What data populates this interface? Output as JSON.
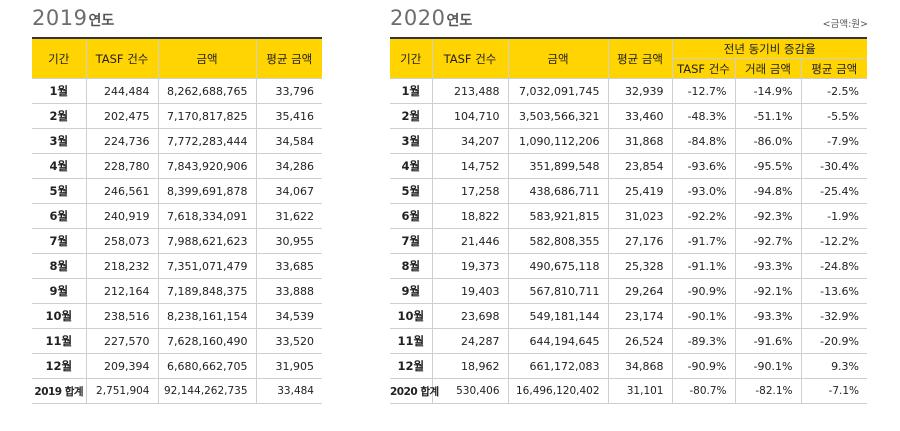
{
  "t2019": {
    "year": "2019",
    "suffix": "연도",
    "headers": [
      "기간",
      "TASF 건수",
      "금액",
      "평균 금액"
    ],
    "rows": [
      [
        "1월",
        "244,484",
        "8,262,688,765",
        "33,796"
      ],
      [
        "2월",
        "202,475",
        "7,170,817,825",
        "35,416"
      ],
      [
        "3월",
        "224,736",
        "7,772,283,444",
        "34,584"
      ],
      [
        "4월",
        "228,780",
        "7,843,920,906",
        "34,286"
      ],
      [
        "5월",
        "246,561",
        "8,399,691,878",
        "34,067"
      ],
      [
        "6월",
        "240,919",
        "7,618,334,091",
        "31,622"
      ],
      [
        "7월",
        "258,073",
        "7,988,621,623",
        "30,955"
      ],
      [
        "8월",
        "218,232",
        "7,351,071,479",
        "33,685"
      ],
      [
        "9월",
        "212,164",
        "7,189,848,375",
        "33,888"
      ],
      [
        "10월",
        "238,516",
        "8,238,161,154",
        "34,539"
      ],
      [
        "11월",
        "227,570",
        "7,628,160,490",
        "33,520"
      ],
      [
        "12월",
        "209,394",
        "6,680,662,705",
        "31,905"
      ]
    ],
    "total": [
      "2019 합계",
      "2,751,904",
      "92,144,262,735",
      "33,484"
    ]
  },
  "t2020": {
    "year": "2020",
    "suffix": "연도",
    "unit_note": "<금액:원>",
    "headers": [
      "기간",
      "TASF 건수",
      "금액",
      "평균 금액"
    ],
    "group_header": "전년 동기비 증감율",
    "sub_headers": [
      "TASF 건수",
      "거래 금액",
      "평균 금액"
    ],
    "rows": [
      [
        "1월",
        "213,488",
        "7,032,091,745",
        "32,939",
        "-12.7%",
        "-14.9%",
        "-2.5%"
      ],
      [
        "2월",
        "104,710",
        "3,503,566,321",
        "33,460",
        "-48.3%",
        "-51.1%",
        "-5.5%"
      ],
      [
        "3월",
        "34,207",
        "1,090,112,206",
        "31,868",
        "-84.8%",
        "-86.0%",
        "-7.9%"
      ],
      [
        "4월",
        "14,752",
        "351,899,548",
        "23,854",
        "-93.6%",
        "-95.5%",
        "-30.4%"
      ],
      [
        "5월",
        "17,258",
        "438,686,711",
        "25,419",
        "-93.0%",
        "-94.8%",
        "-25.4%"
      ],
      [
        "6월",
        "18,822",
        "583,921,815",
        "31,023",
        "-92.2%",
        "-92.3%",
        "-1.9%"
      ],
      [
        "7월",
        "21,446",
        "582,808,355",
        "27,176",
        "-91.7%",
        "-92.7%",
        "-12.2%"
      ],
      [
        "8월",
        "19,373",
        "490,675,118",
        "25,328",
        "-91.1%",
        "-93.3%",
        "-24.8%"
      ],
      [
        "9월",
        "19,403",
        "567,810,711",
        "29,264",
        "-90.9%",
        "-92.1%",
        "-13.6%"
      ],
      [
        "10월",
        "23,698",
        "549,181,144",
        "23,174",
        "-90.1%",
        "-93.3%",
        "-32.9%"
      ],
      [
        "11월",
        "24,287",
        "644,194,645",
        "26,524",
        "-89.3%",
        "-91.6%",
        "-20.9%"
      ],
      [
        "12월",
        "18,962",
        "661,172,083",
        "34,868",
        "-90.9%",
        "-90.1%",
        "9.3%"
      ]
    ],
    "total": [
      "2020 합계",
      "530,406",
      "16,496,120,402",
      "31,101",
      "-80.7%",
      "-82.1%",
      "-7.1%"
    ]
  }
}
